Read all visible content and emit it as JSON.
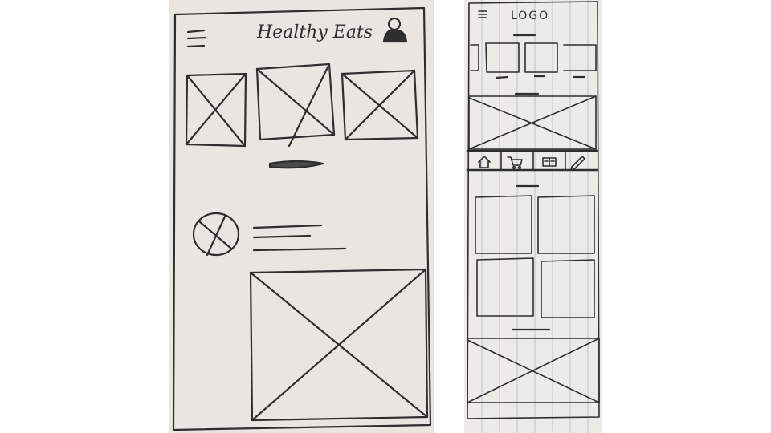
{
  "left_sketch": {
    "title": "Healthy Eats",
    "icons": {
      "menu": "hamburger-menu-icon",
      "profile": "user-profile-icon"
    }
  },
  "right_sketch": {
    "logo_text": "LOGO",
    "icons": {
      "menu": "hamburger-menu-icon",
      "nav": [
        "home-icon",
        "shopping-cart-icon",
        "book-icon",
        "pencil-icon"
      ]
    }
  },
  "colors": {
    "paper": "#e9e6e1",
    "ink": "#2e2e2e",
    "grid_line": "#b9c4cf"
  }
}
